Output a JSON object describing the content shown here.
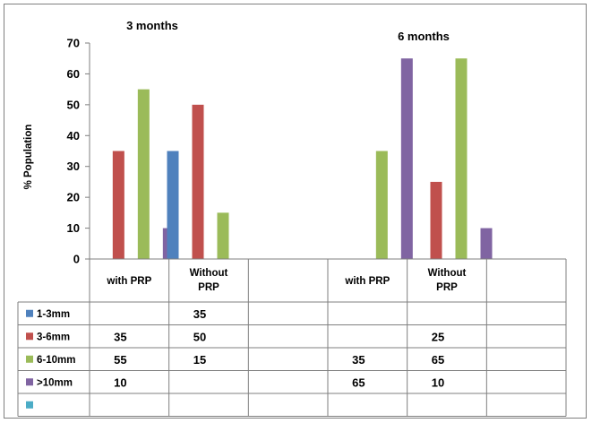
{
  "chart_data": {
    "type": "bar",
    "ylabel": "% Population",
    "ylim": [
      0,
      70
    ],
    "yticks": [
      0,
      10,
      20,
      30,
      40,
      50,
      60,
      70
    ],
    "group_labels": [
      "3 months",
      "6 months"
    ],
    "categories": [
      "with PRP",
      "Without PRP",
      "",
      "with PRP",
      "Without PRP",
      ""
    ],
    "series": [
      {
        "name": "1-3mm",
        "color": "#4F81BD",
        "values": [
          null,
          35,
          null,
          null,
          null,
          null
        ]
      },
      {
        "name": "3-6mm",
        "color": "#C0504D",
        "values": [
          35,
          50,
          null,
          null,
          25,
          null
        ]
      },
      {
        "name": "6-10mm",
        "color": "#9BBB59",
        "values": [
          55,
          15,
          null,
          35,
          65,
          null
        ]
      },
      {
        "name": ">10mm",
        "color": "#8064A2",
        "values": [
          10,
          null,
          null,
          65,
          10,
          null
        ]
      },
      {
        "name": "",
        "color": "#4BACC6",
        "values": [
          null,
          null,
          null,
          null,
          null,
          null
        ]
      }
    ],
    "grid": false,
    "legend": "data-table"
  }
}
